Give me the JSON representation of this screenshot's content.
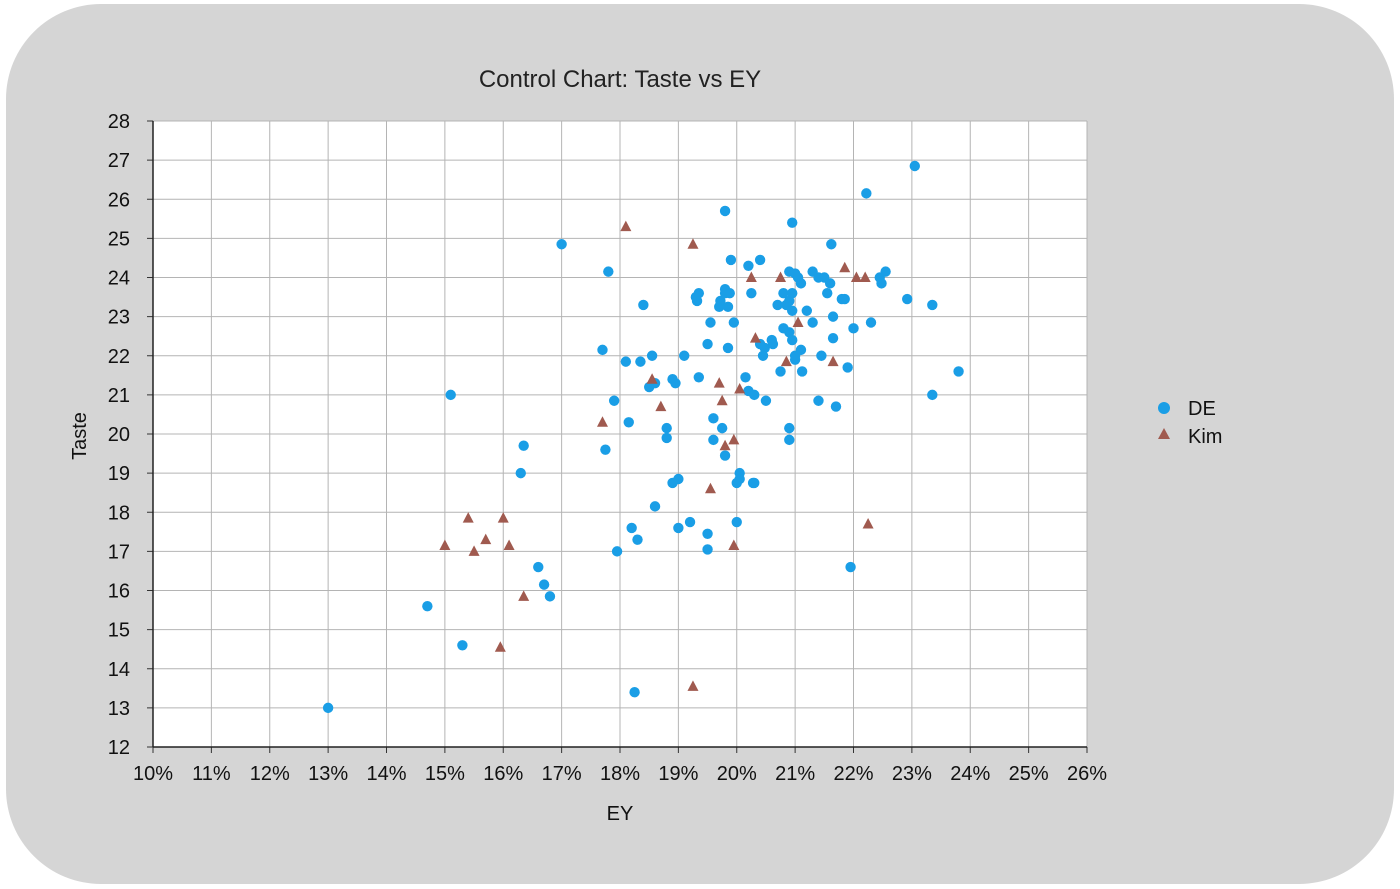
{
  "chart_data": {
    "type": "scatter",
    "title": "Control Chart: Taste vs EY",
    "xlabel": "EY",
    "ylabel": "Taste",
    "xlim": [
      0.1,
      0.26
    ],
    "ylim": [
      12,
      28
    ],
    "x_ticks": [
      "10%",
      "11%",
      "12%",
      "13%",
      "14%",
      "15%",
      "16%",
      "17%",
      "18%",
      "19%",
      "20%",
      "21%",
      "22%",
      "23%",
      "24%",
      "25%",
      "26%"
    ],
    "y_ticks": [
      "12",
      "13",
      "14",
      "15",
      "16",
      "17",
      "18",
      "19",
      "20",
      "21",
      "22",
      "23",
      "24",
      "25",
      "26",
      "27",
      "28"
    ],
    "grid": true,
    "legend_position": "right",
    "series": [
      {
        "name": "DE",
        "marker": "circle",
        "color": "#1a9ee6",
        "points": [
          [
            0.13,
            13.0
          ],
          [
            0.147,
            15.6
          ],
          [
            0.153,
            14.6
          ],
          [
            0.151,
            21.0
          ],
          [
            0.163,
            19.0
          ],
          [
            0.1635,
            19.7
          ],
          [
            0.166,
            16.6
          ],
          [
            0.167,
            16.15
          ],
          [
            0.168,
            15.85
          ],
          [
            0.17,
            24.85
          ],
          [
            0.177,
            22.15
          ],
          [
            0.1775,
            19.6
          ],
          [
            0.178,
            24.15
          ],
          [
            0.179,
            20.85
          ],
          [
            0.1795,
            17.0
          ],
          [
            0.181,
            21.85
          ],
          [
            0.1815,
            20.3
          ],
          [
            0.182,
            17.6
          ],
          [
            0.1825,
            13.4
          ],
          [
            0.183,
            17.3
          ],
          [
            0.1835,
            21.85
          ],
          [
            0.184,
            23.3
          ],
          [
            0.185,
            21.2
          ],
          [
            0.1855,
            22.0
          ],
          [
            0.186,
            21.3
          ],
          [
            0.186,
            18.15
          ],
          [
            0.188,
            20.15
          ],
          [
            0.188,
            19.9
          ],
          [
            0.189,
            18.75
          ],
          [
            0.189,
            21.4
          ],
          [
            0.1895,
            21.3
          ],
          [
            0.19,
            17.6
          ],
          [
            0.19,
            18.85
          ],
          [
            0.191,
            22.0
          ],
          [
            0.192,
            17.75
          ],
          [
            0.193,
            23.5
          ],
          [
            0.1932,
            23.4
          ],
          [
            0.1935,
            23.6
          ],
          [
            0.1935,
            21.45
          ],
          [
            0.195,
            17.45
          ],
          [
            0.195,
            17.05
          ],
          [
            0.195,
            22.3
          ],
          [
            0.1955,
            22.85
          ],
          [
            0.196,
            20.4
          ],
          [
            0.196,
            19.85
          ],
          [
            0.197,
            23.25
          ],
          [
            0.1972,
            23.4
          ],
          [
            0.1975,
            20.15
          ],
          [
            0.198,
            23.6
          ],
          [
            0.198,
            23.7
          ],
          [
            0.198,
            19.45
          ],
          [
            0.198,
            25.7
          ],
          [
            0.1985,
            23.25
          ],
          [
            0.1985,
            22.2
          ],
          [
            0.1988,
            23.6
          ],
          [
            0.199,
            24.45
          ],
          [
            0.1995,
            22.85
          ],
          [
            0.2,
            18.75
          ],
          [
            0.2005,
            18.85
          ],
          [
            0.2005,
            19.0
          ],
          [
            0.2,
            17.75
          ],
          [
            0.2015,
            21.45
          ],
          [
            0.202,
            21.1
          ],
          [
            0.202,
            24.3
          ],
          [
            0.2025,
            23.6
          ],
          [
            0.2028,
            18.75
          ],
          [
            0.203,
            21.0
          ],
          [
            0.203,
            18.75
          ],
          [
            0.204,
            24.45
          ],
          [
            0.204,
            22.3
          ],
          [
            0.2045,
            22.0
          ],
          [
            0.2048,
            22.2
          ],
          [
            0.205,
            20.85
          ],
          [
            0.206,
            22.4
          ],
          [
            0.2062,
            22.3
          ],
          [
            0.207,
            23.3
          ],
          [
            0.2075,
            21.6
          ],
          [
            0.208,
            22.7
          ],
          [
            0.208,
            23.6
          ],
          [
            0.2085,
            23.3
          ],
          [
            0.209,
            24.15
          ],
          [
            0.209,
            22.6
          ],
          [
            0.209,
            23.4
          ],
          [
            0.2095,
            23.15
          ],
          [
            0.209,
            20.15
          ],
          [
            0.209,
            19.85
          ],
          [
            0.2095,
            22.4
          ],
          [
            0.21,
            21.9
          ],
          [
            0.21,
            22.0
          ],
          [
            0.2095,
            25.4
          ],
          [
            0.2095,
            23.6
          ],
          [
            0.21,
            24.1
          ],
          [
            0.2105,
            24.0
          ],
          [
            0.211,
            23.85
          ],
          [
            0.211,
            22.15
          ],
          [
            0.2112,
            21.6
          ],
          [
            0.212,
            23.15
          ],
          [
            0.213,
            22.85
          ],
          [
            0.213,
            24.15
          ],
          [
            0.214,
            24.0
          ],
          [
            0.2145,
            22.0
          ],
          [
            0.214,
            20.85
          ],
          [
            0.215,
            24.0
          ],
          [
            0.2155,
            23.6
          ],
          [
            0.216,
            23.85
          ],
          [
            0.2162,
            24.85
          ],
          [
            0.2165,
            23.0
          ],
          [
            0.2165,
            22.45
          ],
          [
            0.217,
            20.7
          ],
          [
            0.218,
            23.45
          ],
          [
            0.2185,
            23.45
          ],
          [
            0.219,
            21.7
          ],
          [
            0.2195,
            16.6
          ],
          [
            0.22,
            22.7
          ],
          [
            0.2222,
            26.15
          ],
          [
            0.223,
            22.85
          ],
          [
            0.2245,
            24.0
          ],
          [
            0.2248,
            23.85
          ],
          [
            0.2255,
            24.15
          ],
          [
            0.2292,
            23.45
          ],
          [
            0.2305,
            26.85
          ],
          [
            0.2335,
            23.3
          ],
          [
            0.2335,
            21.0
          ],
          [
            0.238,
            21.6
          ]
        ]
      },
      {
        "name": "Kim",
        "marker": "triangle",
        "color": "#a05a4f",
        "points": [
          [
            0.15,
            17.15
          ],
          [
            0.154,
            17.85
          ],
          [
            0.155,
            17.0
          ],
          [
            0.157,
            17.3
          ],
          [
            0.1595,
            14.55
          ],
          [
            0.16,
            17.85
          ],
          [
            0.161,
            17.15
          ],
          [
            0.1635,
            15.85
          ],
          [
            0.177,
            20.3
          ],
          [
            0.181,
            25.3
          ],
          [
            0.1855,
            21.4
          ],
          [
            0.187,
            20.7
          ],
          [
            0.1925,
            24.85
          ],
          [
            0.1925,
            13.55
          ],
          [
            0.1955,
            18.6
          ],
          [
            0.197,
            21.3
          ],
          [
            0.1975,
            20.85
          ],
          [
            0.198,
            19.7
          ],
          [
            0.1995,
            19.85
          ],
          [
            0.1995,
            17.15
          ],
          [
            0.2005,
            21.15
          ],
          [
            0.2025,
            24.0
          ],
          [
            0.2032,
            22.45
          ],
          [
            0.2075,
            24.0
          ],
          [
            0.2085,
            21.85
          ],
          [
            0.2105,
            22.85
          ],
          [
            0.2165,
            21.85
          ],
          [
            0.2185,
            24.25
          ],
          [
            0.2205,
            24.0
          ],
          [
            0.222,
            24.0
          ],
          [
            0.2225,
            17.7
          ]
        ]
      }
    ]
  }
}
